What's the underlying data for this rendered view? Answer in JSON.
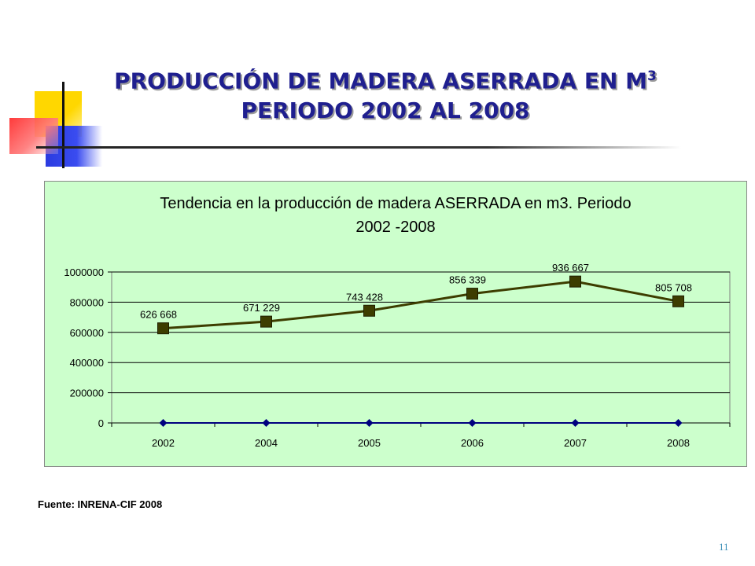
{
  "slide": {
    "title_line1": "PRODUCCIÓN DE MADERA ASERRADA EN M",
    "title_sup": "3",
    "title_line2": "PERIODO 2002 AL 2008",
    "source": "Fuente: INRENA-CIF 2008",
    "page_number": "11"
  },
  "chart_data": {
    "type": "line",
    "title_line1": "Tendencia en la producción de madera ASERRADA en m3. Periodo",
    "title_line2": "2002 -2008",
    "categories": [
      "2002",
      "2004",
      "2005",
      "2006",
      "2007",
      "2008"
    ],
    "series": [
      {
        "values": [
          626668,
          671229,
          743428,
          856339,
          936667,
          805708
        ],
        "labels": [
          "626 668",
          "671 229",
          "743 428",
          "856 339",
          "936 667",
          "805 708"
        ],
        "color": "#3d3d00",
        "marker": "square"
      },
      {
        "values": [
          0,
          0,
          0,
          0,
          0,
          0
        ],
        "color": "#00007f",
        "marker": "diamond"
      }
    ],
    "yticks": [
      "0",
      "200000",
      "400000",
      "600000",
      "800000",
      "1000000"
    ],
    "ylim": [
      0,
      1000000
    ],
    "grid": true,
    "legend": "none",
    "background": "#ccffcc"
  }
}
